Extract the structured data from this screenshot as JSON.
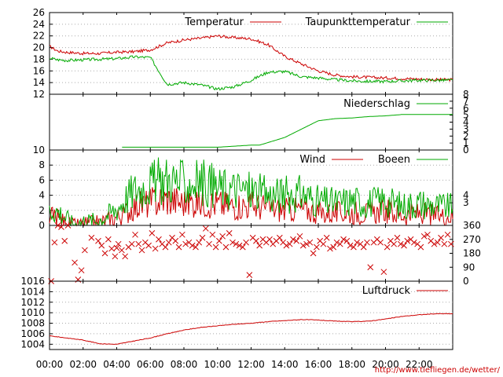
{
  "credit": "http://www.tiefliegen.de/wetter/",
  "colors": {
    "red": "#cc0000",
    "green": "#00aa00",
    "grid": "#aaaaaa",
    "axis": "#000000"
  },
  "time_axis": {
    "range": [
      "00:00",
      "24:00"
    ],
    "tick_labels": [
      "00:00",
      "02:00",
      "04:00",
      "06:00",
      "08:00",
      "10:00",
      "12:00",
      "14:00",
      "16:00",
      "18:00",
      "20:00",
      "22:00"
    ]
  },
  "chart_data": [
    {
      "type": "line",
      "ylim": [
        12,
        26
      ],
      "yticks": [
        "12",
        "14",
        "16",
        "18",
        "20",
        "22",
        "24",
        "26"
      ],
      "grid": true,
      "legend_position": "top-right",
      "x": [
        0,
        0.5,
        1,
        2,
        3,
        4,
        5,
        6,
        7,
        8,
        9,
        10,
        11,
        12,
        13,
        14,
        15,
        16,
        17,
        18,
        19,
        20,
        21,
        22,
        23,
        24
      ],
      "series": [
        {
          "name": "Temperatur",
          "color": "#cc0000",
          "values": [
            20.2,
            19.4,
            19.2,
            19.0,
            19.0,
            19.2,
            19.3,
            19.6,
            20.8,
            21.3,
            21.6,
            22.0,
            21.7,
            21.5,
            20.5,
            18.5,
            17.2,
            16.0,
            15.3,
            15.0,
            14.9,
            14.8,
            14.7,
            14.6,
            14.5,
            14.5
          ]
        },
        {
          "name": "Taupunkttemperatur",
          "color": "#00aa00",
          "values": [
            18.2,
            17.9,
            17.8,
            17.9,
            18.0,
            18.1,
            18.4,
            18.3,
            13.7,
            14.0,
            13.6,
            12.9,
            13.3,
            14.4,
            15.8,
            15.9,
            15.0,
            14.8,
            14.5,
            14.3,
            14.2,
            14.2,
            14.3,
            14.4,
            14.4,
            14.4
          ]
        }
      ]
    },
    {
      "type": "line",
      "ylim": [
        0,
        8
      ],
      "yticks_right": [
        "0",
        "1",
        "2",
        "3",
        "4",
        "5",
        "6",
        "7",
        "8"
      ],
      "grid": false,
      "legend_position": "top-right",
      "x": [
        0,
        4.3,
        5,
        10,
        12,
        12.5,
        14,
        15,
        16,
        17,
        18,
        19,
        20,
        21,
        22,
        23,
        24
      ],
      "series": [
        {
          "name": "Niederschlag",
          "color": "#00aa00",
          "values": [
            null,
            0.4,
            0.4,
            0.4,
            0.7,
            0.7,
            1.8,
            3.0,
            4.2,
            4.5,
            4.6,
            4.8,
            4.9,
            5.1,
            5.1,
            5.1,
            5.1
          ]
        }
      ]
    },
    {
      "type": "line",
      "ylim": [
        0,
        10
      ],
      "yticks": [
        "0",
        "2",
        "4",
        "6",
        "8",
        "10"
      ],
      "yticks_right": [
        "3",
        "4"
      ],
      "grid": true,
      "legend_position": "top-right",
      "x": [
        0,
        0.5,
        1,
        1.5,
        2,
        3,
        4,
        4.5,
        5,
        6,
        7,
        8,
        9,
        10,
        11,
        12,
        13,
        14,
        15,
        16,
        17,
        18,
        19,
        20,
        21,
        22,
        23,
        24
      ],
      "series": [
        {
          "name": "Wind",
          "color": "#cc0000",
          "values": [
            1.2,
            1.0,
            0.3,
            0.0,
            0.2,
            0.4,
            1.1,
            1.6,
            2.5,
            3.0,
            3.5,
            3.0,
            3.2,
            2.8,
            2.6,
            2.7,
            2.3,
            2.0,
            2.2,
            1.7,
            1.6,
            1.7,
            1.6,
            1.9,
            1.4,
            1.6,
            1.3,
            1.2
          ]
        },
        {
          "name": "Boeen",
          "color": "#00aa00",
          "values": [
            2.0,
            1.9,
            1.0,
            0.1,
            0.6,
            0.7,
            2.2,
            3.5,
            4.6,
            5.5,
            6.2,
            5.5,
            5.8,
            5.0,
            4.8,
            4.6,
            4.0,
            4.1,
            4.2,
            3.2,
            3.0,
            3.3,
            3.0,
            3.3,
            2.6,
            3.0,
            2.6,
            2.4
          ]
        }
      ]
    },
    {
      "type": "scatter",
      "ylim": [
        0,
        360
      ],
      "yticks_right": [
        "0",
        "90",
        "180",
        "270",
        "360"
      ],
      "grid": false,
      "series": [
        {
          "name": "",
          "color": "#cc0000",
          "x": [
            0.1,
            0.3,
            0.5,
            0.7,
            0.9,
            1.1,
            1.5,
            1.7,
            1.9,
            2.1,
            2.5,
            2.9,
            3.1,
            3.3,
            3.5,
            3.7,
            3.9,
            4.0,
            4.1,
            4.3,
            4.5,
            4.7,
            4.9,
            5.1,
            5.3,
            5.5,
            5.7,
            5.9,
            6.1,
            6.3,
            6.5,
            6.7,
            6.9,
            7.1,
            7.3,
            7.5,
            7.7,
            7.9,
            8.1,
            8.3,
            8.5,
            8.7,
            8.9,
            9.1,
            9.3,
            9.5,
            9.7,
            9.9,
            10.1,
            10.3,
            10.5,
            10.7,
            10.9,
            11.1,
            11.3,
            11.5,
            11.7,
            11.9,
            12.1,
            12.3,
            12.5,
            12.7,
            12.9,
            13.1,
            13.3,
            13.5,
            13.7,
            13.9,
            14.1,
            14.3,
            14.5,
            14.7,
            14.9,
            15.1,
            15.3,
            15.5,
            15.7,
            15.9,
            16.1,
            16.3,
            16.5,
            16.7,
            16.9,
            17.1,
            17.3,
            17.5,
            17.7,
            17.9,
            18.1,
            18.3,
            18.5,
            18.7,
            18.9,
            19.1,
            19.3,
            19.5,
            19.7,
            19.9,
            20.1,
            20.3,
            20.5,
            20.7,
            20.9,
            21.1,
            21.3,
            21.5,
            21.7,
            21.9,
            22.1,
            22.3,
            22.5,
            22.7,
            22.9,
            23.1,
            23.3,
            23.5,
            23.7,
            23.9
          ],
          "values": [
            0,
            250,
            360,
            350,
            260,
            360,
            120,
            10,
            70,
            200,
            280,
            260,
            230,
            180,
            270,
            210,
            160,
            215,
            240,
            200,
            160,
            220,
            240,
            300,
            240,
            200,
            250,
            230,
            310,
            210,
            270,
            240,
            220,
            250,
            280,
            260,
            220,
            300,
            240,
            250,
            230,
            220,
            250,
            280,
            340,
            240,
            300,
            220,
            260,
            290,
            220,
            310,
            250,
            240,
            230,
            220,
            250,
            40,
            280,
            260,
            230,
            270,
            250,
            270,
            240,
            260,
            280,
            250,
            230,
            240,
            270,
            260,
            290,
            230,
            240,
            250,
            180,
            220,
            260,
            240,
            280,
            210,
            220,
            250,
            240,
            270,
            260,
            230,
            220,
            250,
            240,
            220,
            250,
            90,
            250,
            270,
            250,
            60,
            220,
            260,
            240,
            280,
            240,
            230,
            260,
            270,
            250,
            240,
            220,
            290,
            300,
            260,
            240,
            250,
            280,
            240,
            300,
            240
          ]
        }
      ]
    },
    {
      "type": "line",
      "ylim": [
        1003,
        1016
      ],
      "yticks": [
        "1004",
        "1006",
        "1008",
        "1010",
        "1012",
        "1014",
        "1016"
      ],
      "grid": true,
      "legend_position": "top-right",
      "x": [
        0,
        1,
        2,
        3,
        4,
        5,
        6,
        7,
        8,
        9,
        10,
        11,
        12,
        13,
        14,
        15,
        16,
        17,
        18,
        19,
        20,
        21,
        22,
        23,
        24
      ],
      "series": [
        {
          "name": "Luftdruck",
          "color": "#cc0000",
          "values": [
            1005.6,
            1005.2,
            1004.8,
            1004.1,
            1004.0,
            1004.6,
            1005.2,
            1006.0,
            1006.7,
            1007.2,
            1007.5,
            1007.8,
            1008.0,
            1008.3,
            1008.5,
            1008.7,
            1008.6,
            1008.4,
            1008.3,
            1008.4,
            1008.8,
            1009.3,
            1009.6,
            1009.8,
            1009.8
          ]
        }
      ]
    }
  ]
}
